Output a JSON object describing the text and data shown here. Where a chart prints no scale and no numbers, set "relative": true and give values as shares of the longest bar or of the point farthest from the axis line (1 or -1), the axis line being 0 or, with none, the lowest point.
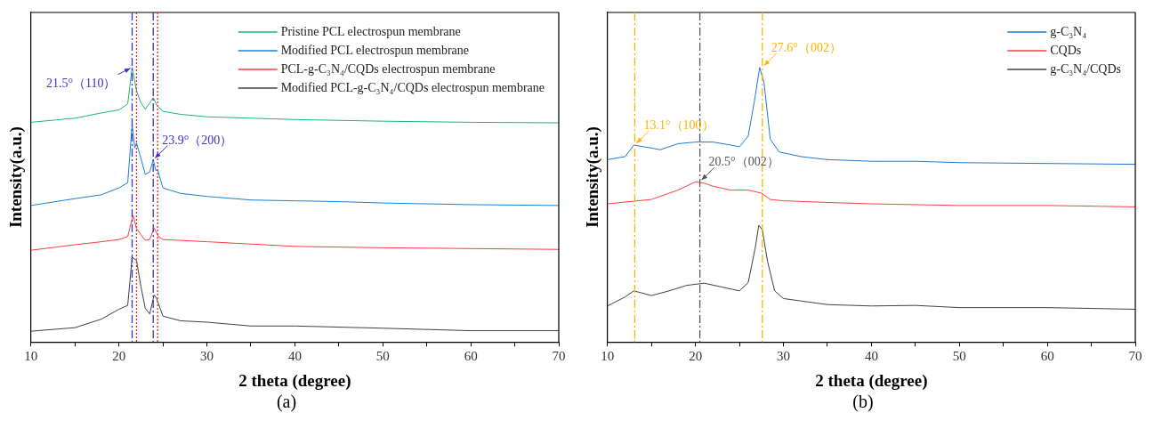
{
  "chart_data": [
    {
      "type": "line",
      "relative": true,
      "xlabel": "2 theta (degree)",
      "ylabel": "Intensity(a.u.)",
      "xlim": [
        10,
        70
      ],
      "xticks": [
        10,
        {
          "value": 15,
          "label": null
        },
        20,
        {
          "value": 25,
          "label": null
        },
        30,
        {
          "value": 35,
          "label": null
        },
        40,
        {
          "value": 45,
          "label": null
        },
        50,
        {
          "value": 55,
          "label": null
        },
        60,
        {
          "value": 65,
          "label": null
        },
        70
      ],
      "tick_labels": "x",
      "grid": false,
      "legend": "top right",
      "marker": "none",
      "series": [
        {
          "name": "Pristine PCL electrospun membrane",
          "color": "#1db37a",
          "x": [
            10,
            15,
            18,
            20,
            21,
            21.5,
            22,
            22.5,
            23,
            23.5,
            23.9,
            24.3,
            25,
            27,
            30,
            35,
            40,
            50,
            60,
            70
          ],
          "values": [
            0.8,
            0.815,
            0.834,
            0.845,
            0.867,
            1.0,
            0.914,
            0.87,
            0.848,
            0.87,
            0.89,
            0.862,
            0.84,
            0.829,
            0.82,
            0.815,
            0.81,
            0.804,
            0.8,
            0.798
          ]
        },
        {
          "name": "Modified PCL electrospun membrane",
          "color": "#1a7fd6",
          "x": [
            10,
            15,
            18,
            20,
            21,
            21.5,
            21.8,
            22,
            22.5,
            23,
            23.5,
            23.9,
            24.2,
            24.4,
            25,
            27,
            30,
            35,
            40,
            45,
            50,
            60,
            70
          ],
          "values": [
            0.497,
            0.522,
            0.536,
            0.561,
            0.58,
            0.793,
            0.707,
            0.724,
            0.669,
            0.61,
            0.619,
            0.663,
            0.624,
            0.627,
            0.561,
            0.541,
            0.53,
            0.517,
            0.514,
            0.511,
            0.506,
            0.5,
            0.497
          ]
        },
        {
          "name": "PCL-g-C₃N₄/CQDs electrospun membrane",
          "color": "#ff3b3b",
          "x": [
            10,
            15,
            18,
            20,
            21,
            21.6,
            22,
            22.5,
            23,
            23.5,
            24,
            24.5,
            25,
            30,
            40,
            50,
            60,
            70
          ],
          "values": [
            0.334,
            0.354,
            0.365,
            0.373,
            0.384,
            0.461,
            0.414,
            0.39,
            0.37,
            0.373,
            0.414,
            0.384,
            0.373,
            0.365,
            0.348,
            0.343,
            0.34,
            0.337
          ]
        },
        {
          "name": "Modified PCL-g-C₃N₄/CQDs electrospun membrane",
          "color": "#404040",
          "x": [
            10,
            15,
            18,
            20,
            21,
            21.5,
            22,
            22.5,
            23,
            23.5,
            24,
            24.3,
            25,
            27,
            30,
            35,
            40,
            50,
            60,
            70
          ],
          "values": [
            0.039,
            0.052,
            0.083,
            0.119,
            0.133,
            0.309,
            0.296,
            0.202,
            0.122,
            0.102,
            0.171,
            0.157,
            0.094,
            0.077,
            0.072,
            0.058,
            0.058,
            0.05,
            0.041,
            0.041
          ]
        }
      ],
      "ref_lines": [
        {
          "axis": "x",
          "value": 21.5,
          "color": "#3a2fd0",
          "line_style": "dashed"
        },
        {
          "axis": "x",
          "value": 23.9,
          "color": "#3a2fd0",
          "line_style": "dashed"
        },
        {
          "axis": "x",
          "value": 22,
          "color": "#ff2020",
          "line_style": "dotted"
        },
        {
          "axis": "x",
          "value": 24.4,
          "color": "#ff2020",
          "line_style": "dotted"
        }
      ],
      "annotations": [
        {
          "text": "21.5°（110）",
          "x": 21.5,
          "y": 1.0
        },
        {
          "text": "23.9°（200）",
          "x": 23.9,
          "y": 0.663
        },
        "(a)"
      ]
    },
    {
      "type": "line",
      "relative": true,
      "xlabel": "2 theta (degree)",
      "ylabel": "Intensity(a.u.)",
      "xlim": [
        10,
        70
      ],
      "xticks": [
        10,
        {
          "value": 15,
          "label": null
        },
        20,
        {
          "value": 25,
          "label": null
        },
        30,
        {
          "value": 35,
          "label": null
        },
        40,
        {
          "value": 45,
          "label": null
        },
        50,
        {
          "value": 55,
          "label": null
        },
        60,
        {
          "value": 65,
          "label": null
        },
        70
      ],
      "tick_labels": "x",
      "grid": false,
      "legend": "top right",
      "marker": "none",
      "series": [
        {
          "name": "g-C₃N₄",
          "color": "#1f78d1",
          "x": [
            10,
            12,
            13,
            15,
            16,
            18,
            20,
            22,
            24,
            25,
            26,
            26.7,
            27.3,
            27.8,
            28.5,
            29.5,
            32,
            35,
            40,
            45,
            50,
            60,
            70
          ],
          "values": [
            0.664,
            0.675,
            0.717,
            0.706,
            0.7,
            0.722,
            0.728,
            0.728,
            0.717,
            0.711,
            0.75,
            0.878,
            1.0,
            0.942,
            0.739,
            0.692,
            0.675,
            0.664,
            0.658,
            0.658,
            0.653,
            0.65,
            0.647
          ]
        },
        {
          "name": "CQDs",
          "color": "#ff4040",
          "x": [
            10,
            15,
            18,
            20,
            21,
            22,
            24,
            26,
            27.5,
            28.5,
            30,
            35,
            40,
            50,
            60,
            70
          ],
          "values": [
            0.503,
            0.519,
            0.553,
            0.583,
            0.578,
            0.567,
            0.553,
            0.553,
            0.542,
            0.519,
            0.514,
            0.508,
            0.503,
            0.497,
            0.497,
            0.492
          ]
        },
        {
          "name": "g-C₃N₄/CQDs",
          "color": "#404040",
          "x": [
            10,
            12,
            13,
            15,
            17,
            19,
            21,
            23,
            25,
            26,
            26.8,
            27.2,
            27.6,
            28.2,
            29,
            30,
            35,
            40,
            45,
            50,
            60,
            70
          ],
          "values": [
            0.131,
            0.164,
            0.186,
            0.169,
            0.186,
            0.206,
            0.214,
            0.2,
            0.186,
            0.217,
            0.344,
            0.425,
            0.408,
            0.292,
            0.186,
            0.158,
            0.136,
            0.131,
            0.133,
            0.125,
            0.125,
            0.119
          ]
        }
      ],
      "ref_lines": [
        {
          "axis": "x",
          "value": 13.1,
          "color": "#ffb300",
          "line_style": "dashed"
        },
        {
          "axis": "x",
          "value": 20.5,
          "color": "#555555",
          "line_style": "dashed"
        },
        {
          "axis": "x",
          "value": 27.6,
          "color": "#ffb300",
          "line_style": "dashed"
        }
      ],
      "annotations": [
        {
          "text": "13.1°（100）",
          "x": 13.1,
          "y": 0.717
        },
        {
          "text": "20.5°（002）",
          "x": 20.5,
          "y": 0.583
        },
        {
          "text": "27.6°（002）",
          "x": 27.6,
          "y": 1.0
        },
        "(b)"
      ]
    }
  ]
}
